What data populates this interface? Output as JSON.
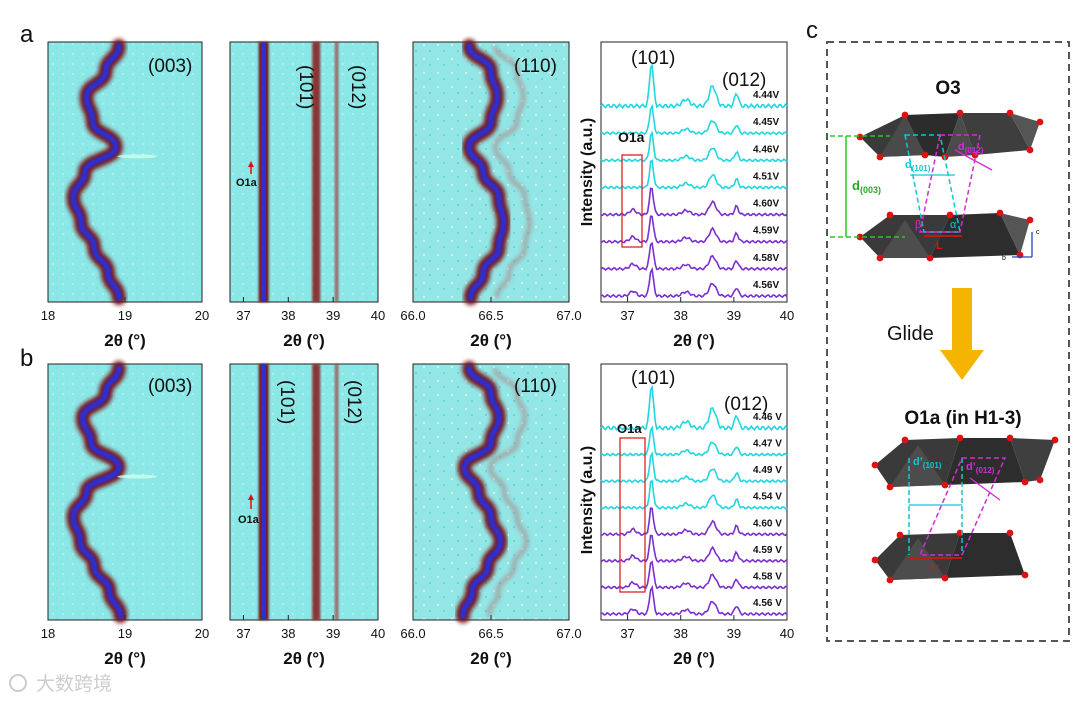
{
  "panel_letters": {
    "a": "a",
    "b": "b",
    "c": "c"
  },
  "colors": {
    "cyan": "#22d6df",
    "purple": "#7a2fd0",
    "map_bg": "#88e6e6",
    "red_box": "#dd2222",
    "octa": "#3c3c3c",
    "oxygen": "#dd1111",
    "arrow": "#f5b400",
    "cyan_dash": "#10c6d6",
    "magenta_dash": "#d62ad6",
    "green_dash": "#22cc22"
  },
  "axis_unit_label": "2θ (°)",
  "watermark": "大数跨境",
  "chart_data": [
    {
      "id": "a1",
      "type": "heatmap",
      "peak_label": "(003)",
      "xlim": [
        18,
        20
      ],
      "ticks": [
        "18",
        "19",
        "20"
      ],
      "xlabel": "2θ (°)",
      "path_x": [
        18.92,
        18.75,
        18.5,
        18.58,
        18.88,
        18.48,
        18.33,
        18.43,
        18.6,
        18.78,
        18.92
      ]
    },
    {
      "id": "a2",
      "type": "heatmap",
      "peak_label": "(101)",
      "peak_label2": "(012)",
      "xlim": [
        36.7,
        40
      ],
      "ticks": [
        "37",
        "38",
        "39",
        "40"
      ],
      "xlabel": "2θ (°)",
      "annotation": "O1a",
      "lines": [
        37.45,
        38.6,
        39.1
      ]
    },
    {
      "id": "a3",
      "type": "heatmap",
      "peak_label": "(110)",
      "xlim": [
        66.0,
        67.0
      ],
      "ticks": [
        "66.0",
        "66.5",
        "67.0"
      ],
      "xlabel": "2θ (°)",
      "path_x": [
        66.36,
        66.5,
        66.54,
        66.5,
        66.36,
        66.45,
        66.55,
        66.58,
        66.55,
        66.45,
        66.37
      ]
    },
    {
      "id": "a4",
      "type": "line",
      "title_labels": [
        "(101)",
        "(012)"
      ],
      "annotation": "O1a",
      "xlim": [
        36.5,
        40
      ],
      "ticks": [
        "37",
        "38",
        "39",
        "40"
      ],
      "xlabel": "2θ (°)",
      "ylabel": "Intensity (a.u.)",
      "series": [
        {
          "name": "4.44V",
          "color": "cyan"
        },
        {
          "name": "4.45V",
          "color": "cyan"
        },
        {
          "name": "4.46V",
          "color": "cyan"
        },
        {
          "name": "4.51V",
          "color": "cyan"
        },
        {
          "name": "4.60V",
          "color": "purple"
        },
        {
          "name": "4.59V",
          "color": "purple"
        },
        {
          "name": "4.58V",
          "color": "purple"
        },
        {
          "name": "4.56V",
          "color": "purple"
        }
      ]
    },
    {
      "id": "b1",
      "type": "heatmap",
      "peak_label": "(003)",
      "xlim": [
        18,
        20
      ],
      "ticks": [
        "18",
        "19",
        "20"
      ],
      "xlabel": "2θ (°)",
      "path_x": [
        18.92,
        18.75,
        18.45,
        18.56,
        18.92,
        18.5,
        18.33,
        18.42,
        18.6,
        18.8,
        18.94
      ]
    },
    {
      "id": "b2",
      "type": "heatmap",
      "peak_label": "(101)",
      "peak_label2": "(012)",
      "xlim": [
        36.7,
        40
      ],
      "ticks": [
        "37",
        "38",
        "39",
        "40"
      ],
      "xlabel": "2θ (°)",
      "annotation": "O1a",
      "lines": [
        37.45,
        38.6,
        39.1
      ]
    },
    {
      "id": "b3",
      "type": "heatmap",
      "peak_label": "(110)",
      "xlim": [
        66.0,
        67.0
      ],
      "ticks": [
        "66.0",
        "66.5",
        "67.0"
      ],
      "xlabel": "2θ (°)",
      "path_x": [
        66.36,
        66.5,
        66.55,
        66.5,
        66.33,
        66.42,
        66.5,
        66.56,
        66.48,
        66.38,
        66.32
      ]
    },
    {
      "id": "b4",
      "type": "line",
      "title_labels": [
        "(101)",
        "(012)"
      ],
      "annotation": "O1a",
      "xlim": [
        36.5,
        40
      ],
      "ticks": [
        "37",
        "38",
        "39",
        "40"
      ],
      "xlabel": "2θ (°)",
      "ylabel": "Intensity (a.u.)",
      "series": [
        {
          "name": "4.46 V",
          "color": "cyan"
        },
        {
          "name": "4.47 V",
          "color": "cyan"
        },
        {
          "name": "4.49 V",
          "color": "cyan"
        },
        {
          "name": "4.54 V",
          "color": "cyan"
        },
        {
          "name": "4.60 V",
          "color": "purple"
        },
        {
          "name": "4.59 V",
          "color": "purple"
        },
        {
          "name": "4.58 V",
          "color": "purple"
        },
        {
          "name": "4.56 V",
          "color": "purple"
        }
      ]
    }
  ],
  "schematic": {
    "top_title": "O3",
    "d003": "d",
    "d003_sub": "(003)",
    "d101": "d",
    "d101_sub": "(101)",
    "d012": "d",
    "d012_sub": "(012)",
    "glide": "Glide",
    "bottom_title": "O1a (in H1-3)",
    "dp101": "d’",
    "dp101_sub": "(101)",
    "dp012": "d’",
    "dp012_sub": "(012)",
    "L": "L",
    "Lp": "L’",
    "alpha": "α",
    "beta": "β",
    "axis_c": "c",
    "axis_b": "b"
  }
}
